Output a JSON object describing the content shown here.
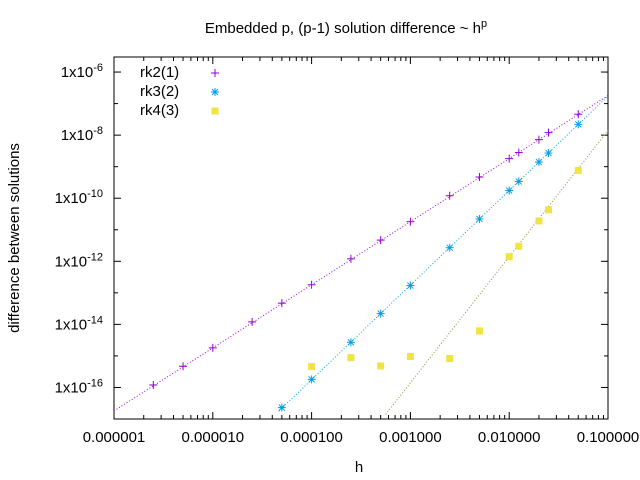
{
  "chart_data": {
    "type": "scatter",
    "title": "Embedded p, (p-1) solution difference ~ h",
    "title_superscript": "p",
    "xlabel": "h",
    "ylabel": "difference between solutions",
    "x_scale": "log",
    "y_scale": "log",
    "xlim": [
      1e-06,
      0.1
    ],
    "ylim": [
      1e-17,
      3e-06
    ],
    "x_ticks": [
      {
        "value": 1e-06,
        "label": "0.000001"
      },
      {
        "value": 1e-05,
        "label": "0.000010"
      },
      {
        "value": 0.0001,
        "label": "0.000100"
      },
      {
        "value": 0.001,
        "label": "0.001000"
      },
      {
        "value": 0.01,
        "label": "0.010000"
      },
      {
        "value": 0.1,
        "label": "0.100000"
      }
    ],
    "y_ticks": [
      {
        "value": 1e-16,
        "label": "1x10",
        "exp": "-16"
      },
      {
        "value": 1e-14,
        "label": "1x10",
        "exp": "-14"
      },
      {
        "value": 1e-12,
        "label": "1x10",
        "exp": "-12"
      },
      {
        "value": 1e-10,
        "label": "1x10",
        "exp": "-10"
      },
      {
        "value": 1e-08,
        "label": "1x10",
        "exp": "-8"
      },
      {
        "value": 1e-06,
        "label": "1x10",
        "exp": "-6"
      }
    ],
    "grid": false,
    "legend_position": "top-left",
    "series": [
      {
        "name": "rk2(1)",
        "marker": "plus",
        "color": "#9400d3",
        "points": [
          [
            2.5e-06,
            1.2e-16
          ],
          [
            5e-06,
            4.7e-16
          ],
          [
            1e-05,
            1.8e-15
          ],
          [
            2.5e-05,
            1.2e-14
          ],
          [
            5e-05,
            4.7e-14
          ],
          [
            0.0001,
            1.8e-13
          ],
          [
            0.00025,
            1.2e-12
          ],
          [
            0.0005,
            4.7e-12
          ],
          [
            0.001,
            1.8e-11
          ],
          [
            0.0025,
            1.2e-10
          ],
          [
            0.005,
            4.7e-10
          ],
          [
            0.01,
            1.8e-09
          ],
          [
            0.0125,
            2.8e-09
          ],
          [
            0.02,
            7.2e-09
          ],
          [
            0.025,
            1.2e-08
          ],
          [
            0.05,
            4.6e-08
          ]
        ]
      },
      {
        "name": "rk3(2)",
        "marker": "star",
        "color": "#009ee8",
        "points": [
          [
            5e-05,
            2.3e-17
          ],
          [
            0.0001,
            1.8e-16
          ],
          [
            0.00025,
            2.7e-15
          ],
          [
            0.0005,
            2.2e-14
          ],
          [
            0.001,
            1.7e-13
          ],
          [
            0.0025,
            2.7e-12
          ],
          [
            0.005,
            2.2e-11
          ],
          [
            0.01,
            1.75e-10
          ],
          [
            0.0125,
            3.4e-10
          ],
          [
            0.02,
            1.4e-09
          ],
          [
            0.025,
            2.7e-09
          ],
          [
            0.05,
            2.2e-08
          ]
        ]
      },
      {
        "name": "rk4(3)",
        "marker": "square",
        "color": "#f0e442",
        "points": [
          [
            0.0001,
            4.6e-16
          ],
          [
            0.00025,
            8.8e-16
          ],
          [
            0.0005,
            4.8e-16
          ],
          [
            0.001,
            9.6e-16
          ],
          [
            0.0025,
            8.3e-16
          ],
          [
            0.005,
            6.2e-15
          ],
          [
            0.01,
            1.4e-12
          ],
          [
            0.0125,
            3e-12
          ],
          [
            0.02,
            1.9e-11
          ],
          [
            0.025,
            4.3e-11
          ],
          [
            0.05,
            7.6e-10
          ]
        ]
      }
    ],
    "fit_lines": [
      {
        "series": "rk2(1)",
        "slope": 2,
        "coef": 1.8e-05,
        "color": "#9400d3"
      },
      {
        "series": "rk3(2)",
        "slope": 3,
        "coef": 0.000175,
        "color": "#009ee8"
      },
      {
        "series": "rk4(3)",
        "slope": 4,
        "coef": 0.00014,
        "color": "#8a8a3a"
      }
    ]
  }
}
